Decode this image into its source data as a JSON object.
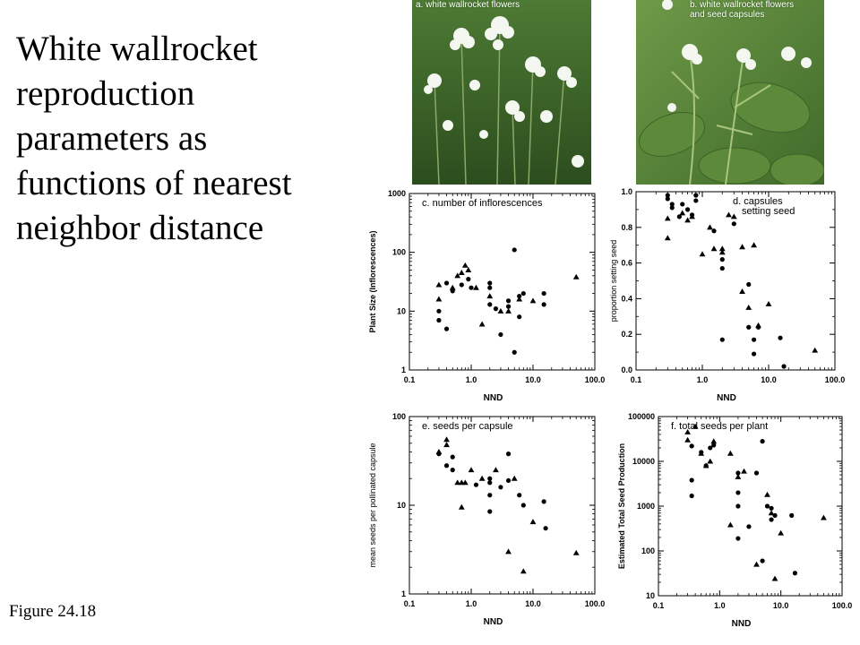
{
  "slide": {
    "title": "White wallrocket\nreproduction\nparameters as\nfunctions of nearest\nneighbor distance",
    "caption": "Figure 24.18"
  },
  "photos": [
    {
      "label": "a. white wallrocket flowers",
      "icon": "flower-photo"
    },
    {
      "label": "b. white wallrocket flowers\nand seed capsules",
      "icon": "flower-photo"
    }
  ],
  "colors": {
    "marker": "#000000",
    "foliage_dark": "#2f5a22",
    "foliage_light": "#6f9a48",
    "petal": "#f4f6f0"
  },
  "chart_data": [
    {
      "type": "scatter",
      "title": "c. number of inflorescences",
      "xlabel": "NND",
      "ylabel": "Plant Size (Inflorescences)",
      "xscale": "log",
      "yscale": "log",
      "xlim": [
        0.1,
        100
      ],
      "ylim": [
        1,
        1000
      ],
      "xticks": [
        "0.1",
        "1.0",
        "10.0",
        "100.0"
      ],
      "yticks": [
        "1",
        "10",
        "100",
        "1000"
      ],
      "series": [
        {
          "marker": "circle",
          "points": [
            [
              0.3,
              10
            ],
            [
              0.3,
              7
            ],
            [
              0.4,
              5
            ],
            [
              0.4,
              30
            ],
            [
              0.5,
              22
            ],
            [
              0.7,
              28
            ],
            [
              0.9,
              35
            ],
            [
              1.0,
              25
            ],
            [
              2.0,
              30
            ],
            [
              2.0,
              25
            ],
            [
              2.0,
              13
            ],
            [
              2.5,
              11
            ],
            [
              3.0,
              4
            ],
            [
              4.0,
              15
            ],
            [
              4.0,
              12
            ],
            [
              5.0,
              110
            ],
            [
              5.0,
              2
            ],
            [
              6.0,
              8
            ],
            [
              6.0,
              18
            ],
            [
              7.0,
              20
            ],
            [
              15.0,
              20
            ],
            [
              15.0,
              13
            ]
          ]
        },
        {
          "marker": "triangle",
          "points": [
            [
              0.3,
              28
            ],
            [
              0.3,
              16
            ],
            [
              0.5,
              25
            ],
            [
              0.6,
              40
            ],
            [
              0.7,
              45
            ],
            [
              0.8,
              60
            ],
            [
              0.9,
              50
            ],
            [
              1.2,
              25
            ],
            [
              1.5,
              6
            ],
            [
              2.0,
              18
            ],
            [
              3.0,
              10
            ],
            [
              4.0,
              10
            ],
            [
              6.0,
              16
            ],
            [
              10.0,
              15
            ],
            [
              50.0,
              38
            ]
          ]
        }
      ]
    },
    {
      "type": "scatter",
      "title": "d. capsules\nsetting seed",
      "xlabel": "NND",
      "ylabel": "proportion setting seed",
      "xscale": "log",
      "yscale": "linear",
      "xlim": [
        0.1,
        100
      ],
      "ylim": [
        0,
        1
      ],
      "xticks": [
        "0.1",
        "1.0",
        "10.0",
        "100.0"
      ],
      "yticks": [
        "0.0",
        "0.2",
        "0.4",
        "0.6",
        "0.8",
        "1.0"
      ],
      "series": [
        {
          "marker": "circle",
          "points": [
            [
              0.3,
              0.98
            ],
            [
              0.3,
              0.96
            ],
            [
              0.35,
              0.93
            ],
            [
              0.35,
              0.91
            ],
            [
              0.45,
              0.86
            ],
            [
              0.5,
              0.93
            ],
            [
              0.6,
              0.9
            ],
            [
              0.7,
              0.87
            ],
            [
              0.8,
              0.98
            ],
            [
              0.8,
              0.95
            ],
            [
              1.5,
              0.78
            ],
            [
              2.0,
              0.62
            ],
            [
              2.0,
              0.57
            ],
            [
              2.0,
              0.17
            ],
            [
              3.0,
              0.82
            ],
            [
              5.0,
              0.48
            ],
            [
              5.0,
              0.24
            ],
            [
              6.0,
              0.09
            ],
            [
              6.0,
              0.17
            ],
            [
              7.0,
              0.24
            ],
            [
              15.0,
              0.18
            ],
            [
              17.0,
              0.02
            ]
          ]
        },
        {
          "marker": "triangle",
          "points": [
            [
              0.3,
              0.85
            ],
            [
              0.3,
              0.74
            ],
            [
              0.5,
              0.88
            ],
            [
              0.6,
              0.84
            ],
            [
              0.7,
              0.86
            ],
            [
              1.0,
              0.65
            ],
            [
              1.3,
              0.8
            ],
            [
              1.5,
              0.68
            ],
            [
              2.0,
              0.68
            ],
            [
              2.0,
              0.66
            ],
            [
              2.5,
              0.87
            ],
            [
              3.0,
              0.86
            ],
            [
              4.0,
              0.69
            ],
            [
              4.0,
              0.44
            ],
            [
              5.0,
              0.35
            ],
            [
              6.0,
              0.7
            ],
            [
              7.0,
              0.25
            ],
            [
              10.0,
              0.37
            ],
            [
              50.0,
              0.11
            ]
          ]
        }
      ]
    },
    {
      "type": "scatter",
      "title": "e. seeds per capsule",
      "xlabel": "NND",
      "ylabel": "mean seeds per pollinated capsule",
      "xscale": "log",
      "yscale": "log",
      "xlim": [
        0.1,
        100
      ],
      "ylim": [
        1,
        100
      ],
      "xticks": [
        "0.1",
        "1.0",
        "10.0",
        "100.0"
      ],
      "yticks": [
        "1",
        "10",
        "100"
      ],
      "series": [
        {
          "marker": "circle",
          "points": [
            [
              0.3,
              38
            ],
            [
              0.4,
              28
            ],
            [
              0.5,
              25
            ],
            [
              0.5,
              35
            ],
            [
              1.2,
              17
            ],
            [
              2.0,
              20
            ],
            [
              2.0,
              18
            ],
            [
              2.0,
              13
            ],
            [
              2.0,
              8.5
            ],
            [
              3.0,
              16
            ],
            [
              4.0,
              38
            ],
            [
              4.0,
              19
            ],
            [
              6.0,
              13
            ],
            [
              7.0,
              10
            ],
            [
              15.0,
              11
            ],
            [
              16.0,
              5.5
            ]
          ]
        },
        {
          "marker": "triangle",
          "points": [
            [
              0.3,
              40
            ],
            [
              0.4,
              55
            ],
            [
              0.4,
              48
            ],
            [
              0.6,
              18
            ],
            [
              0.7,
              18
            ],
            [
              0.7,
              9.5
            ],
            [
              0.8,
              18
            ],
            [
              1.0,
              25
            ],
            [
              1.5,
              20
            ],
            [
              2.5,
              25
            ],
            [
              4.0,
              3
            ],
            [
              5.0,
              20
            ],
            [
              7.0,
              1.8
            ],
            [
              10.0,
              6.5
            ],
            [
              50.0,
              2.9
            ]
          ]
        }
      ]
    },
    {
      "type": "scatter",
      "title": "f. total seeds per plant",
      "xlabel": "NND",
      "ylabel": "Estimated Total Seed Production",
      "xscale": "log",
      "yscale": "log",
      "xlim": [
        0.1,
        100
      ],
      "ylim": [
        10,
        100000
      ],
      "xticks": [
        "0.1",
        "1.0",
        "10.0",
        "100.0"
      ],
      "yticks": [
        "10",
        "100",
        "1000",
        "10000",
        "100000"
      ],
      "series": [
        {
          "marker": "circle",
          "points": [
            [
              0.35,
              22000
            ],
            [
              0.35,
              3800
            ],
            [
              0.35,
              1700
            ],
            [
              0.5,
              16000
            ],
            [
              0.6,
              8000
            ],
            [
              0.7,
              20000
            ],
            [
              0.8,
              23000
            ],
            [
              2.0,
              5500
            ],
            [
              2.0,
              2000
            ],
            [
              2.0,
              1000
            ],
            [
              2.0,
              190
            ],
            [
              3.0,
              350
            ],
            [
              4.0,
              5500
            ],
            [
              5.0,
              28000
            ],
            [
              5.0,
              60
            ],
            [
              6.0,
              1000
            ],
            [
              7.0,
              900
            ],
            [
              7.0,
              500
            ],
            [
              8.0,
              620
            ],
            [
              15.0,
              620
            ],
            [
              17.0,
              32
            ]
          ]
        },
        {
          "marker": "triangle",
          "points": [
            [
              0.3,
              45000
            ],
            [
              0.3,
              30000
            ],
            [
              0.4,
              60000
            ],
            [
              0.5,
              15000
            ],
            [
              0.6,
              8000
            ],
            [
              0.7,
              10000
            ],
            [
              0.8,
              28000
            ],
            [
              1.5,
              15000
            ],
            [
              1.5,
              380
            ],
            [
              2.0,
              4500
            ],
            [
              2.5,
              6000
            ],
            [
              4.0,
              50
            ],
            [
              6.0,
              1800
            ],
            [
              7.0,
              700
            ],
            [
              8.0,
              24
            ],
            [
              10.0,
              250
            ],
            [
              50.0,
              550
            ]
          ]
        }
      ]
    }
  ]
}
